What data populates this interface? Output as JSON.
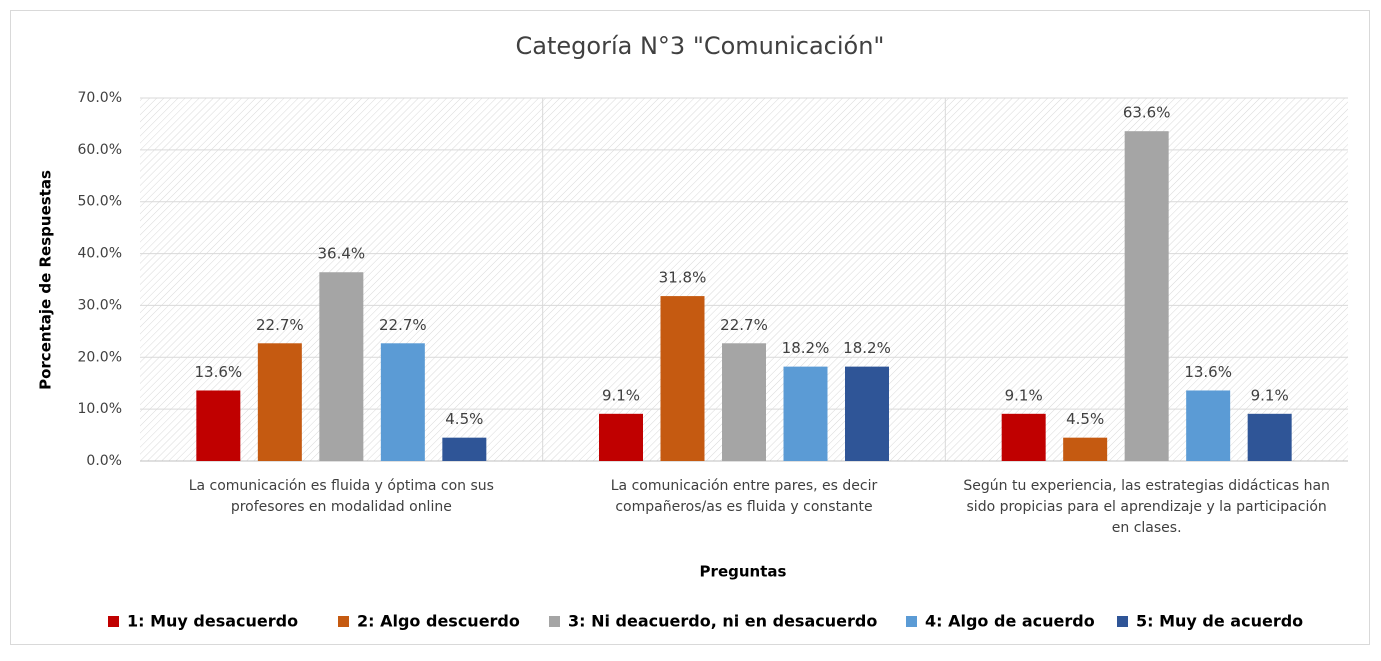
{
  "chart_data": {
    "type": "bar",
    "title": "Categoría N°3 \"Comunicación\"",
    "x_label": "Preguntas",
    "y_label": "Porcentaje de Respuestas",
    "categories": [
      "La comunicación es fluida y óptima con sus profesores en modalidad online",
      "La comunicación entre pares, es decir compañeros/as es fluida y constante",
      "Según tu experiencia, las estrategias didácticas han sido propicias para el aprendizaje y la participación en clases."
    ],
    "series": [
      {
        "name": "1: Muy desacuerdo",
        "color": "#c00000",
        "values": [
          13.6,
          9.1,
          9.1
        ],
        "value_labels": [
          "13.6%",
          "9.1%",
          "9.1%"
        ]
      },
      {
        "name": "2: Algo descuerdo",
        "color": "#c55a11",
        "values": [
          22.7,
          31.8,
          4.5
        ],
        "value_labels": [
          "22.7%",
          "31.8%",
          "4.5%"
        ]
      },
      {
        "name": "3: Ni deacuerdo, ni en desacuerdo",
        "color": "#a5a5a5",
        "values": [
          36.4,
          22.7,
          63.6
        ],
        "value_labels": [
          "36.4%",
          "22.7%",
          "63.6%"
        ]
      },
      {
        "name": "4: Algo de acuerdo",
        "color": "#5b9bd5",
        "values": [
          22.7,
          18.2,
          13.6
        ],
        "value_labels": [
          "22.7%",
          "18.2%",
          "13.6%"
        ]
      },
      {
        "name": "5: Muy de acuerdo",
        "color": "#2f5597",
        "values": [
          4.5,
          18.2,
          9.1
        ],
        "value_labels": [
          "4.5%",
          "18.2%",
          "9.1%"
        ]
      }
    ],
    "ylim": [
      0,
      70
    ],
    "yticks": [
      {
        "value": 0,
        "label": "0.0%"
      },
      {
        "value": 10,
        "label": "10.0%"
      },
      {
        "value": 20,
        "label": "20.0%"
      },
      {
        "value": 30,
        "label": "30.0%"
      },
      {
        "value": 40,
        "label": "40.0%"
      },
      {
        "value": 50,
        "label": "50.0%"
      },
      {
        "value": 60,
        "label": "60.0%"
      },
      {
        "value": 70,
        "label": "70.0%"
      }
    ],
    "grid": true,
    "legend": "bottom"
  }
}
